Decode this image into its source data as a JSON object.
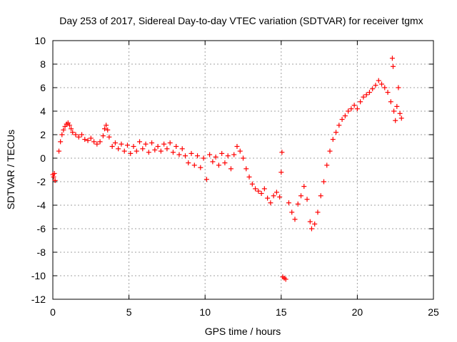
{
  "chart_data": {
    "type": "scatter",
    "title": "Day 253 of 2017, Sidereal Day-to-day VTEC variation (SDTVAR) for receiver tgmx",
    "xlabel": "GPS time / hours",
    "ylabel": "SDTVAR / TECUs",
    "xlim": [
      0,
      25
    ],
    "ylim": [
      -12,
      10
    ],
    "xticks": [
      0,
      5,
      10,
      15,
      20,
      25
    ],
    "yticks": [
      -12,
      -10,
      -8,
      -6,
      -4,
      -2,
      0,
      2,
      4,
      6,
      8,
      10
    ],
    "grid": true,
    "marker": "+",
    "series": [
      {
        "name": "SDTVAR",
        "color": "#ff0000",
        "points": [
          [
            0.0,
            -1.4
          ],
          [
            0.05,
            -1.6
          ],
          [
            0.1,
            -1.3
          ],
          [
            0.15,
            -1.9
          ],
          [
            0.4,
            0.6
          ],
          [
            0.5,
            1.4
          ],
          [
            0.6,
            2.0
          ],
          [
            0.7,
            2.4
          ],
          [
            0.8,
            2.7
          ],
          [
            0.9,
            2.9
          ],
          [
            1.0,
            3.0
          ],
          [
            1.1,
            2.8
          ],
          [
            1.2,
            2.5
          ],
          [
            1.3,
            2.2
          ],
          [
            1.5,
            2.0
          ],
          [
            1.7,
            1.8
          ],
          [
            1.9,
            2.0
          ],
          [
            2.1,
            1.6
          ],
          [
            2.3,
            1.5
          ],
          [
            2.5,
            1.7
          ],
          [
            2.7,
            1.4
          ],
          [
            2.9,
            1.2
          ],
          [
            3.1,
            1.4
          ],
          [
            3.3,
            1.9
          ],
          [
            3.4,
            2.5
          ],
          [
            3.5,
            2.8
          ],
          [
            3.6,
            2.4
          ],
          [
            3.7,
            1.8
          ],
          [
            3.9,
            1.0
          ],
          [
            4.1,
            1.3
          ],
          [
            4.3,
            0.8
          ],
          [
            4.5,
            1.2
          ],
          [
            4.7,
            0.6
          ],
          [
            4.9,
            1.1
          ],
          [
            5.1,
            0.4
          ],
          [
            5.3,
            1.0
          ],
          [
            5.5,
            0.6
          ],
          [
            5.7,
            1.4
          ],
          [
            5.9,
            0.8
          ],
          [
            6.1,
            1.2
          ],
          [
            6.3,
            0.5
          ],
          [
            6.5,
            1.3
          ],
          [
            6.7,
            0.7
          ],
          [
            6.9,
            1.0
          ],
          [
            7.1,
            0.6
          ],
          [
            7.3,
            1.2
          ],
          [
            7.5,
            0.8
          ],
          [
            7.7,
            1.3
          ],
          [
            7.9,
            0.5
          ],
          [
            8.1,
            1.0
          ],
          [
            8.3,
            0.3
          ],
          [
            8.5,
            0.8
          ],
          [
            8.7,
            0.2
          ],
          [
            8.9,
            -0.4
          ],
          [
            9.1,
            0.4
          ],
          [
            9.3,
            -0.6
          ],
          [
            9.5,
            0.2
          ],
          [
            9.7,
            -0.8
          ],
          [
            9.9,
            0.0
          ],
          [
            10.1,
            -1.8
          ],
          [
            10.3,
            0.3
          ],
          [
            10.5,
            -0.3
          ],
          [
            10.7,
            0.1
          ],
          [
            10.9,
            -0.6
          ],
          [
            11.1,
            0.4
          ],
          [
            11.3,
            -0.4
          ],
          [
            11.5,
            0.2
          ],
          [
            11.7,
            -0.9
          ],
          [
            11.9,
            0.3
          ],
          [
            12.1,
            1.0
          ],
          [
            12.3,
            0.6
          ],
          [
            12.5,
            0.0
          ],
          [
            12.7,
            -0.9
          ],
          [
            12.9,
            -1.6
          ],
          [
            13.1,
            -2.2
          ],
          [
            13.3,
            -2.6
          ],
          [
            13.5,
            -2.8
          ],
          [
            13.7,
            -3.0
          ],
          [
            13.9,
            -2.6
          ],
          [
            14.1,
            -3.4
          ],
          [
            14.3,
            -3.8
          ],
          [
            14.5,
            -3.2
          ],
          [
            14.7,
            -2.9
          ],
          [
            14.9,
            -3.3
          ],
          [
            15.0,
            -1.2
          ],
          [
            15.05,
            0.5
          ],
          [
            15.1,
            -10.1
          ],
          [
            15.2,
            -10.2
          ],
          [
            15.3,
            -10.3
          ],
          [
            15.5,
            -3.8
          ],
          [
            15.7,
            -4.6
          ],
          [
            15.9,
            -5.2
          ],
          [
            16.1,
            -3.9
          ],
          [
            16.3,
            -3.2
          ],
          [
            16.5,
            -2.4
          ],
          [
            16.7,
            -3.5
          ],
          [
            16.9,
            -5.4
          ],
          [
            17.0,
            -6.0
          ],
          [
            17.2,
            -5.6
          ],
          [
            17.4,
            -4.6
          ],
          [
            17.6,
            -3.2
          ],
          [
            17.8,
            -2.0
          ],
          [
            18.0,
            -0.6
          ],
          [
            18.2,
            0.6
          ],
          [
            18.4,
            1.6
          ],
          [
            18.6,
            2.2
          ],
          [
            18.8,
            2.8
          ],
          [
            19.0,
            3.3
          ],
          [
            19.2,
            3.6
          ],
          [
            19.4,
            4.0
          ],
          [
            19.6,
            4.2
          ],
          [
            19.8,
            4.5
          ],
          [
            20.0,
            4.2
          ],
          [
            20.2,
            4.8
          ],
          [
            20.4,
            5.2
          ],
          [
            20.6,
            5.4
          ],
          [
            20.8,
            5.6
          ],
          [
            21.0,
            5.9
          ],
          [
            21.2,
            6.2
          ],
          [
            21.4,
            6.6
          ],
          [
            21.6,
            6.3
          ],
          [
            21.8,
            6.0
          ],
          [
            22.0,
            5.6
          ],
          [
            22.2,
            4.8
          ],
          [
            22.3,
            8.5
          ],
          [
            22.35,
            7.8
          ],
          [
            22.4,
            4.0
          ],
          [
            22.5,
            3.2
          ],
          [
            22.6,
            4.4
          ],
          [
            22.7,
            6.0
          ],
          [
            22.8,
            3.8
          ],
          [
            22.9,
            3.4
          ]
        ]
      }
    ]
  }
}
